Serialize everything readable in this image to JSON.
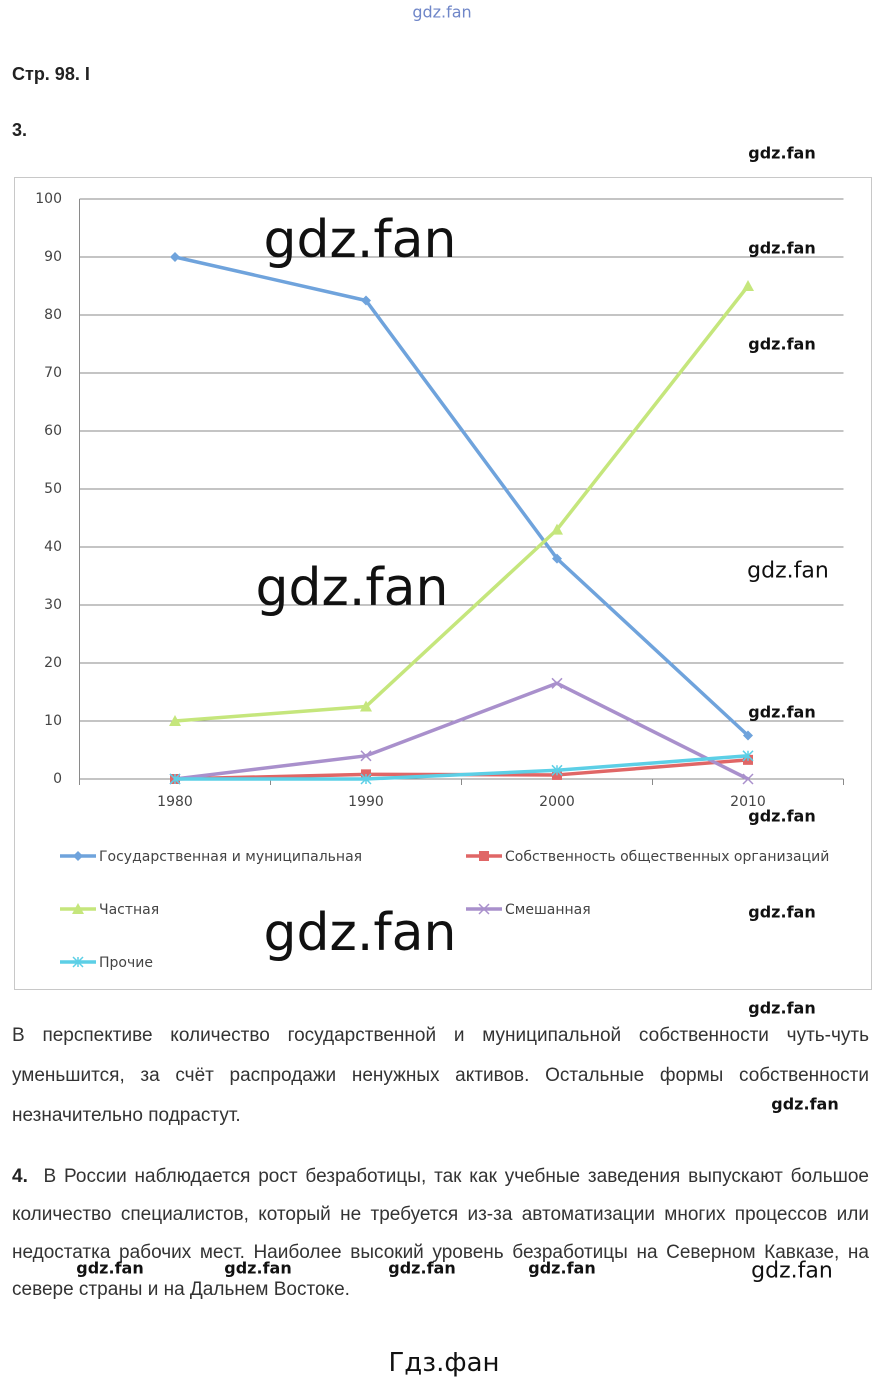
{
  "header": {
    "title": "Стр. 98. I",
    "section": "3."
  },
  "chart_data": {
    "type": "line",
    "categories": [
      "1980",
      "1990",
      "2000",
      "2010"
    ],
    "ylim": [
      0,
      100
    ],
    "yticks": [
      0,
      10,
      20,
      30,
      40,
      50,
      60,
      70,
      80,
      90,
      100
    ],
    "grid": true,
    "series": [
      {
        "name": "Государственная и муниципальная",
        "color": "#6fa3dc",
        "marker": "diamond",
        "values": [
          90,
          82.5,
          38,
          7.5
        ]
      },
      {
        "name": "Собственность общественных организаций",
        "color": "#e06666",
        "marker": "square",
        "values": [
          0,
          0.8,
          0.7,
          3.3
        ]
      },
      {
        "name": "Частная",
        "color": "#c5e67c",
        "marker": "triangle",
        "values": [
          10,
          12.5,
          43,
          85
        ]
      },
      {
        "name": "Смешанная",
        "color": "#a990cc",
        "marker": "x",
        "values": [
          0,
          4,
          16.5,
          0
        ]
      },
      {
        "name": "Прочие",
        "color": "#5ccfe6",
        "marker": "star",
        "values": [
          0,
          0,
          1.5,
          4
        ]
      }
    ]
  },
  "paragraphs": [
    {
      "text": "В перспективе количество государственной и муниципальной собственности чуть-чуть уменьшится, за счёт распродажи ненужных активов. Остальные формы собственности незначительно подрастут."
    },
    {
      "number": "4.",
      "text": "В России наблюдается рост безработицы, так как учебные заведения выпускают большое количество специалистов, который не требуется из-за автоматизации многих процессов или недостатка рабочих мест. Наиболее высокий уровень безработицы на Северном Кавказе, на севере страны и на Дальнем Востоке."
    }
  ],
  "watermarks": [
    "gdz.fan",
    "gdz.fan",
    "gdz.fan",
    "gdz.fan",
    "gdz.fan",
    "gdz.fan",
    "gdz.fan",
    "gdz.fan",
    "gdz.fan",
    "gdz.fan",
    "gdz.fan",
    "gdz.fan",
    "gdz.fan",
    "gdz.fan",
    "gdz.fan",
    "gdz.fan",
    "gdz.fan",
    "gdz.fan",
    "Гдз.фан"
  ]
}
